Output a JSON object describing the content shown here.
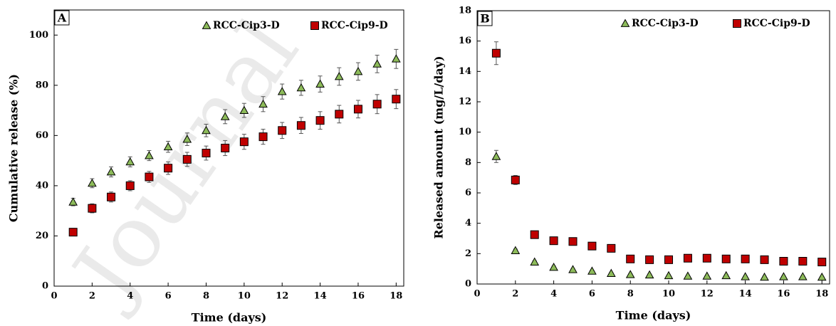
{
  "watermark": "Journal",
  "chart_data": [
    {
      "type": "scatter",
      "panel_label": "A",
      "x_label": "Time (days)",
      "y_label": "Cumulative release (%)",
      "xlim": [
        0,
        18.4
      ],
      "xticks": [
        0,
        2,
        4,
        6,
        8,
        10,
        12,
        14,
        16,
        18
      ],
      "ylim": [
        0,
        110
      ],
      "yticks": [
        0,
        20,
        40,
        60,
        80,
        100
      ],
      "x": [
        1,
        2,
        3,
        4,
        5,
        6,
        7,
        8,
        9,
        10,
        11,
        12,
        13,
        14,
        15,
        16,
        17,
        18
      ],
      "legend": "top",
      "series": [
        {
          "name": "RCC-Cip3-D",
          "color": "#8dbb5a",
          "marker": "triangle",
          "values": [
            33.5,
            41,
            45.5,
            49.5,
            52,
            55.5,
            58.5,
            62,
            67.5,
            70,
            72.5,
            77.5,
            79,
            80.5,
            83.5,
            85.5,
            88.5,
            90.5
          ],
          "errors": [
            1.5,
            1.8,
            2,
            2,
            2,
            2.2,
            2.5,
            2.5,
            2.8,
            2.8,
            3,
            3,
            3,
            3.2,
            3.5,
            3.5,
            3.5,
            3.8
          ]
        },
        {
          "name": "RCC-Cip9-D",
          "color": "#c00000",
          "marker": "square",
          "values": [
            21.5,
            31,
            35.5,
            40,
            43.5,
            47,
            50.5,
            53,
            55,
            57.5,
            59.5,
            62,
            64,
            66,
            68.5,
            70.5,
            72.5,
            74.5
          ],
          "errors": [
            1.5,
            1.8,
            2,
            2,
            2.2,
            2.5,
            2.8,
            2.8,
            3,
            3,
            3,
            3.2,
            3.2,
            3.5,
            3.5,
            3.5,
            3.8,
            3.8
          ]
        }
      ]
    },
    {
      "type": "scatter",
      "panel_label": "B",
      "x_label": "Time (days)",
      "y_label": "Released amount (mg/L/day)",
      "xlim": [
        0,
        18.4
      ],
      "xticks": [
        0,
        2,
        4,
        6,
        8,
        10,
        12,
        14,
        16,
        18
      ],
      "ylim": [
        0,
        18
      ],
      "yticks": [
        0,
        2,
        4,
        6,
        8,
        10,
        12,
        14,
        16,
        18
      ],
      "x": [
        1,
        2,
        3,
        4,
        5,
        6,
        7,
        8,
        9,
        10,
        11,
        12,
        13,
        14,
        15,
        16,
        17,
        18
      ],
      "legend": "top",
      "series": [
        {
          "name": "RCC-Cip3-D",
          "color": "#8dbb5a",
          "marker": "triangle",
          "values": [
            8.4,
            2.2,
            1.45,
            1.1,
            0.95,
            0.85,
            0.7,
            0.62,
            0.6,
            0.55,
            0.52,
            0.52,
            0.55,
            0.48,
            0.45,
            0.48,
            0.48,
            0.45
          ],
          "errors": [
            0.4,
            0.1,
            0.08,
            0.08,
            0.06,
            0.06,
            0.05,
            0.05,
            0.05,
            0.05,
            0.05,
            0.05,
            0.05,
            0.05,
            0.05,
            0.05,
            0.05,
            0.05
          ]
        },
        {
          "name": "RCC-Cip9-D",
          "color": "#c00000",
          "marker": "square",
          "values": [
            15.2,
            6.85,
            3.25,
            2.85,
            2.8,
            2.5,
            2.35,
            1.65,
            1.6,
            1.6,
            1.7,
            1.7,
            1.65,
            1.65,
            1.6,
            1.5,
            1.5,
            1.45
          ],
          "errors": [
            0.75,
            0.3,
            0.12,
            0.1,
            0.1,
            0.1,
            0.1,
            0.08,
            0.08,
            0.08,
            0.08,
            0.08,
            0.08,
            0.08,
            0.08,
            0.08,
            0.08,
            0.08
          ]
        }
      ]
    }
  ]
}
